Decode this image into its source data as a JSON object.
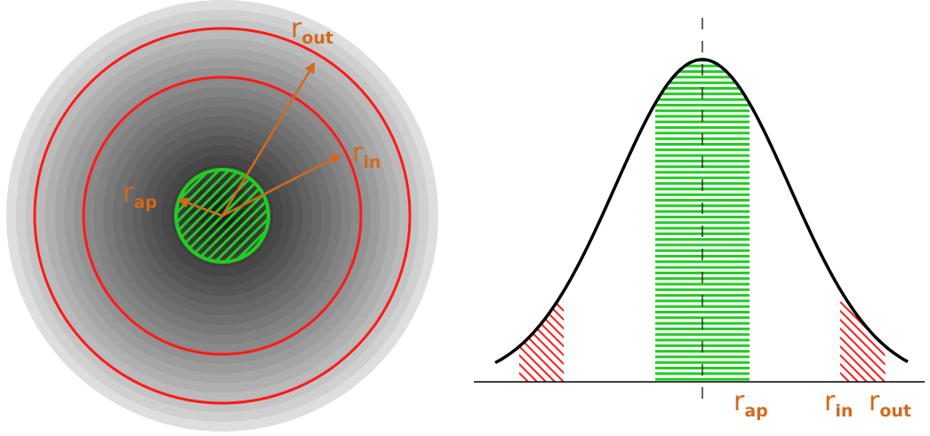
{
  "diagram": {
    "colors": {
      "annulus": "#ff1a1a",
      "aperture": "#22cc22",
      "arrows": "#d2691e",
      "labels": "#d2691e",
      "profile": "#000000",
      "axis": "#000000",
      "star_center": "#222222",
      "star_edge": "#dcdcdc"
    },
    "left_panel": {
      "labels": {
        "r_out": {
          "main": "r",
          "sub": "out"
        },
        "r_in": {
          "main": "r",
          "sub": "in"
        },
        "r_ap": {
          "main": "r",
          "sub": "ap"
        }
      }
    },
    "right_panel": {
      "labels": {
        "r_ap": {
          "main": "r",
          "sub": "ap"
        },
        "r_in": {
          "main": "r",
          "sub": "in"
        },
        "r_out": {
          "main": "r",
          "sub": "out"
        }
      }
    }
  }
}
